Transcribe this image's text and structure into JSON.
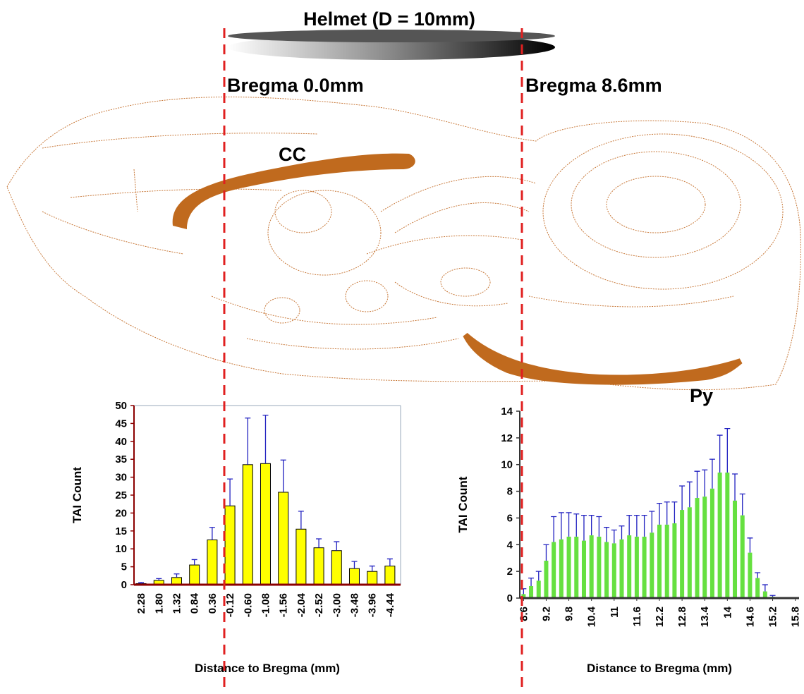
{
  "labels": {
    "helmet": "Helmet (D = 10mm)",
    "bregma_left": "Bregma 0.0mm",
    "bregma_right": "Bregma 8.6mm",
    "cc": "CC",
    "py": "Py"
  },
  "chart_data": [
    {
      "type": "bar",
      "x_label": "Distance to Bregma (mm)",
      "y_label": "TAI Count",
      "categories": [
        "2.28",
        "1.80",
        "1.32",
        "0.84",
        "0.36",
        "-0.12",
        "-0.60",
        "-1.08",
        "-1.56",
        "-2.04",
        "-2.52",
        "-3.00",
        "-3.48",
        "-3.96",
        "-4.44"
      ],
      "values": [
        0.3,
        1.2,
        2,
        5.5,
        12.5,
        22,
        33.5,
        33.8,
        25.8,
        15.5,
        10.3,
        9.5,
        4.5,
        3.7,
        5.2
      ],
      "errors": [
        0.3,
        0.5,
        1,
        1.5,
        3.5,
        7.5,
        13,
        13.5,
        9,
        5,
        2.5,
        2.5,
        2,
        1.5,
        2
      ],
      "color": "#ffff00",
      "error_color": "#2020c0",
      "ylim": [
        0,
        50
      ],
      "yticks": [
        0,
        5,
        10,
        15,
        20,
        25,
        30,
        35,
        40,
        45,
        50
      ]
    },
    {
      "type": "bar",
      "x_label": "Distance to Bregma (mm)",
      "y_label": "TAI Count",
      "x": [
        8.6,
        8.8,
        9.0,
        9.2,
        9.4,
        9.6,
        9.8,
        10.0,
        10.2,
        10.4,
        10.6,
        10.8,
        11.0,
        11.2,
        11.4,
        11.6,
        11.8,
        12.0,
        12.2,
        12.4,
        12.6,
        12.8,
        13.0,
        13.2,
        13.4,
        13.6,
        13.8,
        14.0,
        14.2,
        14.4,
        14.6,
        14.8,
        15.0,
        15.2,
        15.4
      ],
      "values": [
        0.3,
        0.9,
        1.3,
        2.8,
        4.2,
        4.4,
        4.6,
        4.6,
        4.3,
        4.7,
        4.6,
        4.2,
        4.1,
        4.4,
        4.7,
        4.6,
        4.6,
        4.9,
        5.5,
        5.5,
        5.6,
        6.6,
        6.8,
        7.5,
        7.6,
        8.2,
        9.4,
        9.4,
        7.3,
        6.2,
        3.4,
        1.5,
        0.5,
        0.1,
        0
      ],
      "errors": [
        0.4,
        0.6,
        0.7,
        1.2,
        1.9,
        2.0,
        1.8,
        1.7,
        1.9,
        1.5,
        1.5,
        1.1,
        1.0,
        1.0,
        1.5,
        1.6,
        1.6,
        1.6,
        1.6,
        1.7,
        1.6,
        1.8,
        1.9,
        2.0,
        2.0,
        2.2,
        2.8,
        3.3,
        2.0,
        1.6,
        1.1,
        0.4,
        0.5,
        0.1,
        0
      ],
      "color": "#66e040",
      "error_color": "#2020c0",
      "xlim": [
        8.5,
        15.9
      ],
      "xticks": [
        8.6,
        9.2,
        9.8,
        10.4,
        11,
        11.6,
        12.2,
        12.8,
        13.4,
        14,
        14.6,
        15.2,
        15.8
      ],
      "ylim": [
        0,
        14
      ],
      "yticks": [
        0,
        2,
        4,
        6,
        8,
        10,
        12,
        14
      ]
    }
  ]
}
